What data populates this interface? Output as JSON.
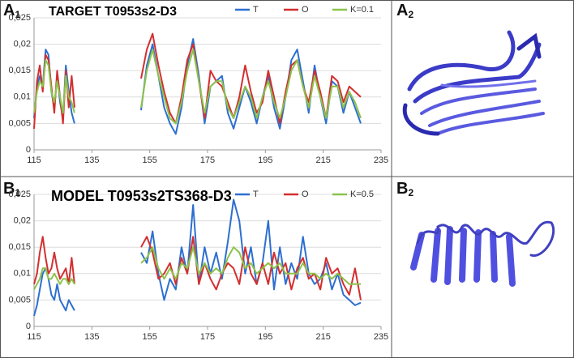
{
  "panels": [
    {
      "letter": "A",
      "sub": "1"
    },
    {
      "letter": "A",
      "sub": "2"
    },
    {
      "letter": "B",
      "sub": "1"
    },
    {
      "letter": "B",
      "sub": "2"
    }
  ],
  "chart_data": [
    {
      "type": "line",
      "title": "TARGET T0953s2-D3",
      "x": [
        115,
        116,
        117,
        118,
        119,
        120,
        121,
        122,
        123,
        124,
        125,
        126,
        127,
        128,
        129,
        140,
        152,
        154,
        156,
        158,
        160,
        162,
        164,
        166,
        168,
        170,
        172,
        174,
        176,
        178,
        180,
        182,
        184,
        186,
        188,
        190,
        192,
        194,
        196,
        198,
        200,
        202,
        204,
        206,
        208,
        210,
        212,
        214,
        216,
        218,
        220,
        222,
        224,
        226,
        228
      ],
      "series": [
        {
          "name": "T",
          "color": "#2e6fd0",
          "values": [
            0.006,
            0.012,
            0.014,
            0.012,
            0.019,
            0.018,
            0.011,
            0.008,
            0.014,
            0.009,
            0.006,
            0.016,
            0.011,
            0.007,
            0.005,
            null,
            0.0075,
            0.016,
            0.02,
            0.014,
            0.008,
            0.005,
            0.003,
            0.008,
            0.016,
            0.021,
            0.014,
            0.005,
            0.012,
            0.013,
            0.014,
            0.007,
            0.004,
            0.008,
            0.012,
            0.009,
            0.005,
            0.01,
            0.014,
            0.008,
            0.004,
            0.01,
            0.017,
            0.019,
            0.013,
            0.007,
            0.016,
            0.01,
            0.005,
            0.013,
            0.012,
            0.007,
            0.011,
            0.008,
            0.005
          ]
        },
        {
          "name": "O",
          "color": "#d32f2f",
          "values": [
            0.004,
            0.013,
            0.016,
            0.011,
            0.018,
            0.017,
            0.012,
            0.007,
            0.015,
            0.01,
            0.005,
            0.015,
            0.008,
            0.014,
            0.008,
            null,
            0.0135,
            0.019,
            0.022,
            0.016,
            0.011,
            0.007,
            0.005,
            0.01,
            0.017,
            0.02,
            0.013,
            0.006,
            0.015,
            0.013,
            0.012,
            0.009,
            0.006,
            0.01,
            0.016,
            0.011,
            0.007,
            0.009,
            0.015,
            0.01,
            0.005,
            0.011,
            0.016,
            0.017,
            0.012,
            0.009,
            0.015,
            0.011,
            0.006,
            0.014,
            0.013,
            0.009,
            0.012,
            0.011,
            0.01
          ]
        },
        {
          "name": "K=0.1",
          "color": "#8bc34a",
          "values": [
            0.007,
            0.011,
            0.013,
            0.012,
            0.017,
            0.016,
            0.011,
            0.009,
            0.013,
            0.01,
            0.007,
            0.014,
            0.01,
            0.009,
            0.007,
            null,
            0.008,
            0.015,
            0.019,
            0.014,
            0.01,
            0.006,
            0.005,
            0.009,
            0.015,
            0.019,
            0.013,
            0.007,
            0.012,
            0.013,
            0.013,
            0.008,
            0.006,
            0.009,
            0.012,
            0.01,
            0.006,
            0.01,
            0.013,
            0.009,
            0.006,
            0.01,
            0.015,
            0.017,
            0.012,
            0.008,
            0.014,
            0.01,
            0.006,
            0.012,
            0.012,
            0.008,
            0.011,
            0.009,
            0.006
          ]
        }
      ],
      "xlim": [
        115,
        235
      ],
      "xticks": [
        115,
        135,
        155,
        175,
        195,
        215,
        235
      ],
      "ylim": [
        0,
        0.025
      ],
      "yticks": [
        0,
        {
          "value": 0.005,
          "label": "0,005"
        },
        {
          "value": 0.01,
          "label": "0,01"
        },
        {
          "value": 0.015,
          "label": "0,015"
        },
        {
          "value": 0.02,
          "label": "0,02"
        },
        {
          "value": 0.025,
          "label": "0,025"
        }
      ],
      "grid": true
    },
    {
      "type": "line",
      "title": "MODEL T0953s2TS368-D3",
      "x": [
        115,
        116,
        117,
        118,
        119,
        120,
        121,
        122,
        123,
        124,
        125,
        126,
        127,
        128,
        129,
        140,
        152,
        154,
        156,
        158,
        160,
        162,
        164,
        166,
        168,
        170,
        172,
        174,
        176,
        178,
        180,
        182,
        184,
        186,
        188,
        190,
        192,
        194,
        196,
        198,
        200,
        202,
        204,
        206,
        208,
        210,
        212,
        214,
        216,
        218,
        220,
        222,
        224,
        226,
        228
      ],
      "series": [
        {
          "name": "T",
          "color": "#2e6fd0",
          "values": [
            0.002,
            0.004,
            0.007,
            0.01,
            0.011,
            0.009,
            0.006,
            0.005,
            0.008,
            0.005,
            0.004,
            0.003,
            0.005,
            0.004,
            0.003,
            null,
            0.014,
            0.012,
            0.018,
            0.01,
            0.005,
            0.009,
            0.007,
            0.015,
            0.01,
            0.023,
            0.008,
            0.015,
            0.01,
            0.014,
            0.009,
            0.016,
            0.024,
            0.02,
            0.01,
            0.015,
            0.008,
            0.012,
            0.02,
            0.007,
            0.015,
            0.008,
            0.012,
            0.009,
            0.017,
            0.01,
            0.008,
            0.009,
            0.012,
            0.007,
            0.01,
            0.006,
            0.005,
            0.004,
            0.0045
          ]
        },
        {
          "name": "O",
          "color": "#d32f2f",
          "values": [
            0.008,
            0.01,
            0.014,
            0.017,
            0.013,
            0.01,
            0.011,
            0.014,
            0.011,
            0.009,
            0.01,
            0.011,
            0.008,
            0.013,
            0.008,
            null,
            0.015,
            0.017,
            0.014,
            0.009,
            0.01,
            0.012,
            0.008,
            0.013,
            0.01,
            0.017,
            0.008,
            0.012,
            0.009,
            0.007,
            0.01,
            0.012,
            0.011,
            0.008,
            0.015,
            0.01,
            0.008,
            0.012,
            0.008,
            0.014,
            0.01,
            0.012,
            0.007,
            0.011,
            0.013,
            0.009,
            0.01,
            0.007,
            0.013,
            0.01,
            0.011,
            0.008,
            0.006,
            0.011,
            0.005
          ]
        },
        {
          "name": "K=0.5",
          "color": "#8bc34a",
          "values": [
            0.007,
            0.008,
            0.009,
            0.011,
            0.011,
            0.009,
            0.009,
            0.01,
            0.009,
            0.008,
            0.009,
            0.009,
            0.008,
            0.009,
            0.008,
            null,
            0.012,
            0.013,
            0.015,
            0.011,
            0.009,
            0.011,
            0.009,
            0.012,
            0.011,
            0.015,
            0.01,
            0.012,
            0.01,
            0.011,
            0.01,
            0.013,
            0.015,
            0.014,
            0.011,
            0.012,
            0.01,
            0.011,
            0.012,
            0.011,
            0.012,
            0.01,
            0.01,
            0.01,
            0.012,
            0.01,
            0.01,
            0.009,
            0.01,
            0.009,
            0.01,
            0.009,
            0.008,
            0.008,
            0.008
          ]
        }
      ],
      "xlim": [
        115,
        235
      ],
      "xticks": [
        115,
        135,
        155,
        175,
        195,
        215,
        235
      ],
      "ylim": [
        0,
        0.025
      ],
      "yticks": [
        0,
        {
          "value": 0.005,
          "label": "0,005"
        },
        {
          "value": 0.01,
          "label": "0,01"
        },
        {
          "value": 0.015,
          "label": "0,015"
        },
        {
          "value": 0.02,
          "label": "0,02"
        },
        {
          "value": 0.025,
          "label": "0,025"
        }
      ],
      "grid": true
    }
  ]
}
